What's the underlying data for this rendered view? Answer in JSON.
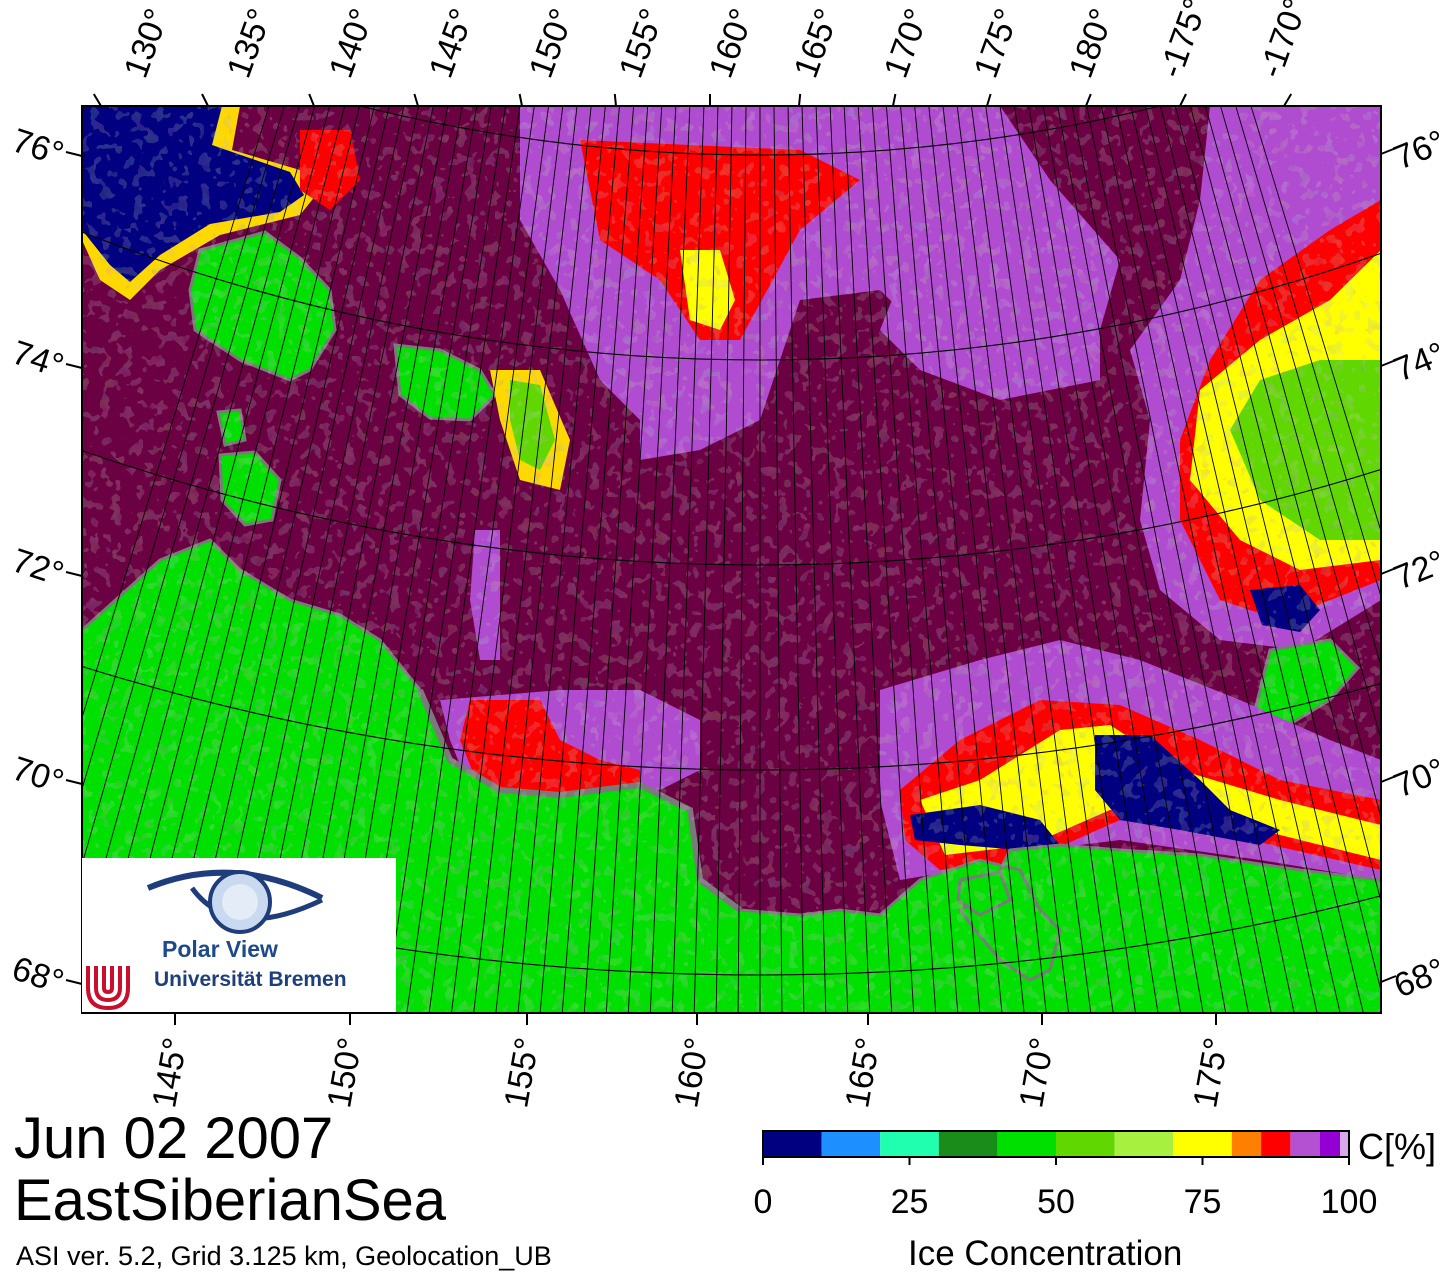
{
  "map": {
    "date": "Jun 02 2007",
    "region": "EastSiberianSea",
    "product_line": "ASI ver. 5.2,  Grid 3.125 km, Geolocation_UB",
    "lon_labels_top": [
      "130°",
      "135°",
      "140°",
      "145°",
      "150°",
      "155°",
      "160°",
      "165°",
      "170°",
      "175°",
      "180°",
      "-175°",
      "-170°"
    ],
    "lon_labels_bottom": [
      "145°",
      "150°",
      "155°",
      "160°",
      "165°",
      "170°",
      "175°"
    ],
    "lat_labels_left": [
      "76°",
      "74°",
      "72°",
      "70°",
      "68°"
    ],
    "lat_labels_right": [
      "76°",
      "74°",
      "72°",
      "70°",
      "68°"
    ],
    "colors": {
      "ocean": "#6b0043",
      "land": "#00e000",
      "land_edge": "#7a7a7a",
      "ice_low": "#00008b",
      "ice_mid": "#00e000",
      "ice_high": "#ff0000",
      "ice_margin": "#b04cd0",
      "ice_yellow": "#ffff00"
    }
  },
  "colorbar": {
    "unit": "C[%]",
    "title": "Ice Concentration",
    "ticks": [
      "0",
      "25",
      "50",
      "75",
      "100"
    ],
    "colors": [
      "#000080",
      "#1e8fff",
      "#20ffb0",
      "#1a8c1a",
      "#00e000",
      "#60d800",
      "#a8f040",
      "#ffff00",
      "#ff8000",
      "#ff0000",
      "#b450d2",
      "#9400d3",
      "#d8a8e8"
    ]
  },
  "logo": {
    "title": "Polar View",
    "subtitle": "Universität Bremen"
  }
}
